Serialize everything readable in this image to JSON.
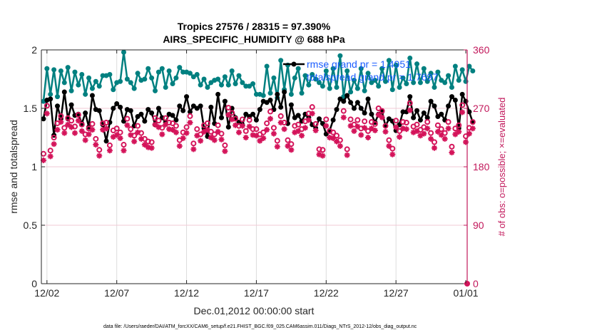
{
  "chart_data": {
    "type": "line",
    "title": [
      "Tropics 27576 / 28315 = 97.390%",
      "AIRS_SPECIFIC_HUMIDITY @ 688 hPa"
    ],
    "xlabel": "Dec.01,2012 00:00:00 start",
    "ylabel_left": "rmse and totalspread",
    "ylabel_right": "# of obs: o=possible; ×=evaluated",
    "xlim_days": [
      0.6,
      31.1
    ],
    "ylim_left": [
      0,
      2
    ],
    "ylim_right": [
      0,
      360
    ],
    "x_ticks": [
      {
        "day": 1,
        "label": "12/02"
      },
      {
        "day": 6,
        "label": "12/07"
      },
      {
        "day": 11,
        "label": "12/12"
      },
      {
        "day": 16,
        "label": "12/17"
      },
      {
        "day": 21,
        "label": "12/22"
      },
      {
        "day": 26,
        "label": "12/27"
      },
      {
        "day": 31,
        "label": "01/01"
      }
    ],
    "y_ticks_left": [
      "0",
      "0.5",
      "1",
      "1.5",
      "2"
    ],
    "y_ticks_left_values": [
      0,
      0.5,
      1,
      1.5,
      2
    ],
    "y_ticks_right": [
      "0",
      "90",
      "180",
      "270",
      "360"
    ],
    "y_ticks_right_values": [
      0,
      90,
      180,
      270,
      360
    ],
    "grid": true,
    "legend": {
      "placement": "top-right",
      "entries": [
        "rmse grand pr = 1.4951",
        "totalspread grand pr = 1.7697"
      ]
    },
    "x_step_days": 0.25,
    "x_start_day": 0.75,
    "series": [
      {
        "name": "totalspread",
        "axis": "left",
        "color": "#008080",
        "values": [
          1.56,
          1.84,
          1.62,
          1.83,
          1.6,
          1.82,
          1.72,
          1.85,
          1.65,
          1.81,
          1.7,
          1.79,
          1.62,
          1.76,
          1.67,
          1.73,
          1.69,
          1.78,
          1.78,
          1.79,
          1.66,
          1.72,
          1.73,
          1.98,
          1.75,
          1.72,
          1.67,
          1.8,
          1.74,
          1.75,
          1.84,
          1.76,
          1.65,
          1.81,
          1.84,
          1.68,
          1.82,
          1.71,
          1.76,
          1.85,
          1.81,
          1.81,
          1.8,
          1.77,
          1.79,
          1.7,
          1.75,
          1.68,
          1.72,
          1.74,
          1.75,
          1.7,
          1.77,
          1.7,
          1.82,
          1.71,
          1.78,
          1.72,
          1.69,
          1.69,
          1.71,
          1.62,
          1.62,
          1.61,
          1.86,
          1.63,
          1.76,
          1.59,
          1.91,
          1.66,
          1.87,
          1.62,
          1.76,
          1.84,
          1.63,
          1.78,
          1.7,
          1.79,
          1.75,
          1.72,
          1.69,
          1.82,
          1.67,
          1.84,
          1.68,
          1.95,
          1.6,
          1.82,
          1.64,
          1.74,
          1.67,
          1.84,
          1.65,
          1.8,
          1.72,
          1.74,
          1.69,
          1.84,
          1.73,
          1.91,
          1.66,
          1.87,
          1.68,
          1.76,
          1.71,
          1.93,
          1.72,
          1.88,
          1.72,
          1.84,
          1.73,
          1.8,
          1.68,
          1.81,
          1.74,
          1.72,
          1.78,
          1.68,
          1.86,
          1.74,
          1.83,
          1.73,
          1.86,
          1.82
        ]
      },
      {
        "name": "rmse",
        "axis": "left",
        "color": "#000000",
        "values": [
          1.41,
          1.57,
          1.58,
          1.27,
          1.52,
          1.41,
          1.64,
          1.41,
          1.53,
          1.44,
          1.45,
          1.37,
          1.46,
          1.34,
          1.61,
          1.49,
          1.48,
          1.36,
          1.22,
          1.38,
          1.5,
          1.54,
          1.51,
          1.39,
          1.49,
          1.48,
          1.35,
          1.43,
          1.45,
          1.39,
          1.49,
          1.46,
          1.36,
          1.5,
          1.42,
          1.38,
          1.45,
          1.44,
          1.4,
          1.52,
          1.48,
          1.6,
          1.47,
          1.52,
          1.5,
          1.52,
          1.33,
          1.26,
          1.51,
          1.37,
          1.62,
          1.42,
          1.56,
          1.34,
          1.5,
          1.42,
          1.38,
          1.36,
          1.45,
          1.43,
          1.45,
          1.4,
          1.49,
          1.56,
          1.55,
          1.57,
          1.49,
          1.62,
          1.51,
          1.64,
          1.37,
          1.53,
          1.42,
          1.44,
          1.39,
          1.45,
          1.42,
          1.36,
          1.33,
          1.41,
          1.37,
          1.28,
          1.31,
          1.4,
          1.49,
          1.58,
          1.56,
          1.61,
          1.55,
          1.5,
          1.55,
          1.5,
          1.46,
          1.58,
          1.45,
          1.38,
          1.45,
          1.47,
          1.35,
          1.41,
          1.39,
          1.31,
          1.36,
          1.47,
          1.47,
          1.6,
          1.42,
          1.48,
          1.4,
          1.46,
          1.42,
          1.56,
          1.52,
          1.43,
          1.45,
          1.4,
          1.52,
          1.6,
          1.57,
          1.33,
          1.62,
          1.56,
          1.47,
          1.38
        ]
      },
      {
        "name": "possible obs",
        "axis": "right",
        "color": "#d4145a",
        "marker": "o",
        "values": [
          200,
          274,
          205,
          225,
          247,
          258,
          240,
          255,
          251,
          242,
          260,
          245,
          230,
          239,
          246,
          223,
          206,
          247,
          248,
          213,
          236,
          239,
          233,
          214,
          254,
          238,
          228,
          243,
          232,
          223,
          219,
          218,
          255,
          251,
          240,
          255,
          248,
          247,
          243,
          221,
          233,
          241,
          258,
          216,
          238,
          230,
          244,
          247,
          234,
          230,
          244,
          231,
          213,
          271,
          263,
          254,
          243,
          253,
          235,
          252,
          238,
          238,
          230,
          233,
          247,
          265,
          240,
          220,
          258,
          248,
          221,
          215,
          243,
          245,
          238,
          250,
          262,
          272,
          246,
          207,
          206,
          253,
          235,
          233,
          228,
          221,
          266,
          207,
          253,
          245,
          252,
          239,
          250,
          235,
          249,
          246,
          270,
          266,
          243,
          221,
          208,
          251,
          235,
          249,
          248,
          278,
          242,
          245,
          237,
          241,
          249,
          232,
          218,
          244,
          238,
          232,
          249,
          211,
          239,
          244,
          275,
          227,
          240,
          249
        ]
      },
      {
        "name": "evaluated obs",
        "axis": "right",
        "color": "#d4145a",
        "marker": "*",
        "values": [
          190,
          262,
          196,
          215,
          237,
          249,
          232,
          245,
          241,
          232,
          251,
          235,
          221,
          230,
          237,
          214,
          197,
          237,
          239,
          205,
          226,
          229,
          224,
          205,
          244,
          229,
          219,
          233,
          223,
          214,
          210,
          209,
          245,
          241,
          230,
          245,
          238,
          237,
          233,
          212,
          224,
          232,
          248,
          207,
          228,
          220,
          234,
          237,
          225,
          221,
          234,
          222,
          204,
          260,
          253,
          244,
          233,
          243,
          225,
          242,
          229,
          228,
          220,
          224,
          237,
          254,
          231,
          211,
          248,
          238,
          212,
          206,
          233,
          235,
          228,
          240,
          252,
          262,
          236,
          199,
          197,
          243,
          225,
          224,
          219,
          212,
          256,
          198,
          243,
          235,
          242,
          229,
          240,
          225,
          239,
          236,
          260,
          256,
          234,
          212,
          199,
          241,
          226,
          239,
          238,
          267,
          233,
          235,
          228,
          231,
          239,
          223,
          209,
          234,
          229,
          223,
          239,
          202,
          230,
          234,
          264,
          218,
          231,
          239
        ]
      }
    ],
    "footer": "data file: /Users/raeder/DAI/ATM_forcXX/CAM6_setup/f.e21.FHIST_BGC.f09_025.CAM6assim.011/Diags_NTrS_2012-12/obs_diag_output.nc"
  }
}
